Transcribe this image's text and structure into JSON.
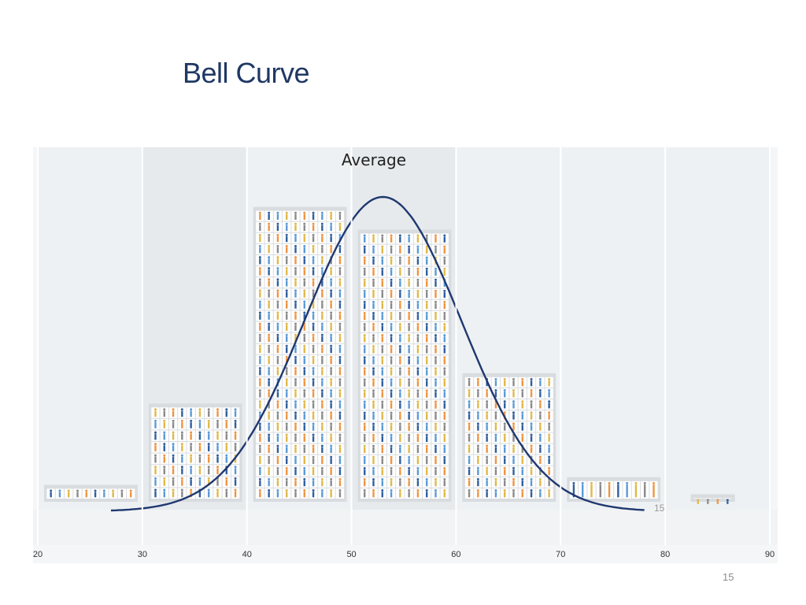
{
  "slide": {
    "title": "Bell Curve",
    "page_number": "15"
  },
  "chart_data": {
    "type": "bar",
    "title": "",
    "xlabel": "",
    "ylabel": "",
    "x_ticks": [
      "20",
      "30",
      "40",
      "50",
      "60",
      "70",
      "80",
      "90"
    ],
    "xlim": [
      20,
      90
    ],
    "bins": [
      [
        20,
        30
      ],
      [
        30,
        40
      ],
      [
        40,
        50
      ],
      [
        50,
        60
      ],
      [
        60,
        70
      ],
      [
        70,
        80
      ],
      [
        80,
        90
      ]
    ],
    "values": [
      9,
      52,
      156,
      144,
      68,
      13,
      4
    ],
    "annotation": "Average",
    "curve_end_label": "15",
    "overlay": {
      "type": "normal-curve",
      "mean": 53,
      "sd": 7.5,
      "x_range": [
        27,
        78
      ]
    },
    "colors": {
      "curve": "#1f3870",
      "bar_frame": "#cfd3d6",
      "background": "#eef1f3",
      "person_colors": [
        "#2f5f9e",
        "#e0b848",
        "#ef9440",
        "#5a9ad6",
        "#8a8a8a"
      ]
    }
  }
}
